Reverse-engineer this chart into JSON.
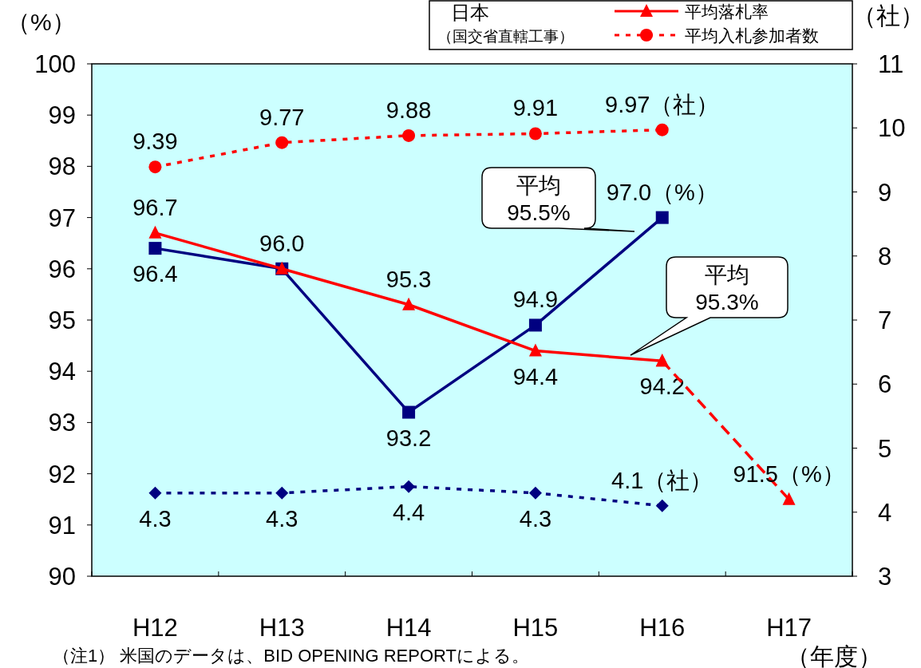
{
  "chart_data": {
    "type": "line",
    "ylabel": "（%）",
    "y2label": "（社）",
    "xlabel": "（年度）",
    "legend_title": "日本",
    "legend": "top right",
    "grid": false,
    "categories": [
      "H12",
      "H13",
      "H14",
      "H15",
      "H16",
      "H17"
    ],
    "ylim": [
      90,
      100
    ],
    "yticks": [
      90,
      91,
      92,
      93,
      94,
      95,
      96,
      97,
      98,
      99,
      100
    ],
    "y2lim": [
      3,
      11
    ],
    "y2ticks": [
      3,
      4,
      5,
      6,
      7,
      8,
      9,
      10,
      11
    ],
    "series": [
      {
        "color": "#000080",
        "marker": "square",
        "line_style": "solid",
        "values": [
          96.4,
          96.0,
          93.2,
          94.9,
          97.0,
          null
        ],
        "value_labels": [
          "96.4",
          null,
          "93.2",
          "94.9",
          "97.0（%）",
          null
        ]
      },
      {
        "name": "平均落札率",
        "color": "#ff0000",
        "marker": "triangle",
        "line_style": "solid",
        "values": [
          96.7,
          96.0,
          95.3,
          94.4,
          94.2,
          null
        ],
        "value_labels": [
          "96.7",
          "96.0",
          "95.3",
          "94.4",
          "94.2",
          null
        ]
      },
      {
        "color": "#ff0000",
        "marker": "triangle",
        "line_style": "dashed",
        "values": [
          null,
          null,
          null,
          null,
          94.2,
          91.5
        ],
        "value_labels": [
          null,
          null,
          null,
          null,
          null,
          "91.5（%）"
        ]
      },
      {
        "name": "平均入札参加者数",
        "color": "#ff0000",
        "marker": "circle",
        "line_style": "dotted",
        "axis": "y2",
        "values": [
          9.39,
          9.77,
          9.88,
          9.91,
          9.97,
          null
        ],
        "value_labels": [
          "9.39",
          "9.77",
          "9.88",
          "9.91",
          "9.97（社）",
          null
        ]
      },
      {
        "color": "#000080",
        "marker": "diamond",
        "line_style": "dotted",
        "axis": "y2",
        "values": [
          4.3,
          4.3,
          4.4,
          4.3,
          4.1,
          null
        ],
        "value_labels": [
          "4.3",
          "4.3",
          "4.4",
          "4.3",
          "4.1（社）",
          null
        ]
      }
    ],
    "annotations": [
      "平均\n95.5%",
      "平均\n95.3%",
      "（国交省直轄工事）",
      "（注1） 米国のデータは、BID OPENING REPORTによる。"
    ]
  }
}
